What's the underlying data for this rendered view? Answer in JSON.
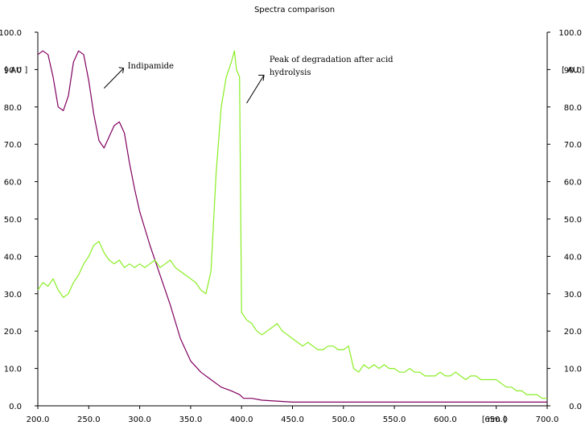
{
  "chart_data": {
    "type": "line",
    "title": "Spectra comparison",
    "xlabel": "[ nm ]",
    "ylabel": "[ AU ]",
    "y2label": "[ AU ]",
    "xlim": [
      200,
      700
    ],
    "ylim": [
      0,
      100
    ],
    "x_ticks": [
      "200.0",
      "250.0",
      "300.0",
      "350.0",
      "400.0",
      "450.0",
      "500.0",
      "550.0",
      "600.0",
      "650.0",
      "700.0"
    ],
    "y_ticks": [
      "0.0",
      "10.0",
      "20.0",
      "30.0",
      "40.0",
      "50.0",
      "60.0",
      "70.0",
      "80.0",
      "90.0",
      "100.0"
    ],
    "grid": false,
    "series": [
      {
        "color": "#800060",
        "x": [
          200,
          205,
          210,
          215,
          220,
          225,
          230,
          235,
          240,
          245,
          250,
          255,
          260,
          265,
          270,
          275,
          280,
          285,
          290,
          295,
          300,
          310,
          320,
          330,
          340,
          350,
          360,
          370,
          380,
          390,
          398,
          402,
          410,
          420,
          450,
          500,
          550,
          600,
          650,
          700
        ],
        "y": [
          94,
          95,
          94,
          88,
          80,
          79,
          83,
          92,
          95,
          94,
          87,
          78,
          71,
          69,
          72,
          75,
          76,
          73,
          65,
          58,
          52,
          43,
          35,
          27,
          18,
          12,
          9,
          7,
          5,
          4,
          3,
          2,
          2,
          1.5,
          1,
          1,
          1,
          1,
          1,
          1
        ]
      },
      {
        "color": "#88ee22",
        "x": [
          200,
          205,
          210,
          215,
          220,
          225,
          230,
          235,
          240,
          245,
          250,
          255,
          260,
          265,
          270,
          275,
          280,
          285,
          290,
          295,
          300,
          305,
          310,
          315,
          320,
          325,
          330,
          335,
          340,
          345,
          350,
          355,
          360,
          365,
          370,
          375,
          380,
          385,
          390,
          393,
          395,
          398,
          400,
          405,
          410,
          415,
          420,
          425,
          430,
          435,
          440,
          445,
          450,
          455,
          460,
          465,
          470,
          475,
          480,
          485,
          490,
          495,
          500,
          505,
          510,
          515,
          520,
          525,
          530,
          535,
          540,
          545,
          550,
          555,
          560,
          565,
          570,
          575,
          580,
          585,
          590,
          595,
          600,
          605,
          610,
          615,
          620,
          625,
          630,
          635,
          640,
          645,
          650,
          655,
          660,
          665,
          670,
          675,
          680,
          685,
          690,
          695,
          700
        ],
        "y": [
          31,
          33,
          32,
          34,
          31,
          29,
          30,
          33,
          35,
          38,
          40,
          43,
          44,
          41,
          39,
          38,
          39,
          37,
          38,
          37,
          38,
          37,
          38,
          39,
          37,
          38,
          39,
          37,
          36,
          35,
          34,
          33,
          31,
          30,
          36,
          62,
          80,
          88,
          92,
          95,
          90,
          88,
          25,
          23,
          22,
          20,
          19,
          20,
          21,
          22,
          20,
          19,
          18,
          17,
          16,
          17,
          16,
          15,
          15,
          16,
          16,
          15,
          15,
          16,
          10,
          9,
          11,
          10,
          11,
          10,
          11,
          10,
          10,
          9,
          9,
          10,
          9,
          9,
          8,
          8,
          8,
          9,
          8,
          8,
          9,
          8,
          7,
          8,
          8,
          7,
          7,
          7,
          7,
          6,
          5,
          5,
          4,
          4,
          3,
          3,
          3,
          2,
          2
        ]
      }
    ],
    "annotations": [
      {
        "text": "Indipamide",
        "x": 285,
        "y": 91
      },
      {
        "text": "Peak of degradation after acid",
        "x": 425,
        "y": 92
      },
      {
        "text": "hydrolysis",
        "x": 425,
        "y": 89
      }
    ]
  }
}
